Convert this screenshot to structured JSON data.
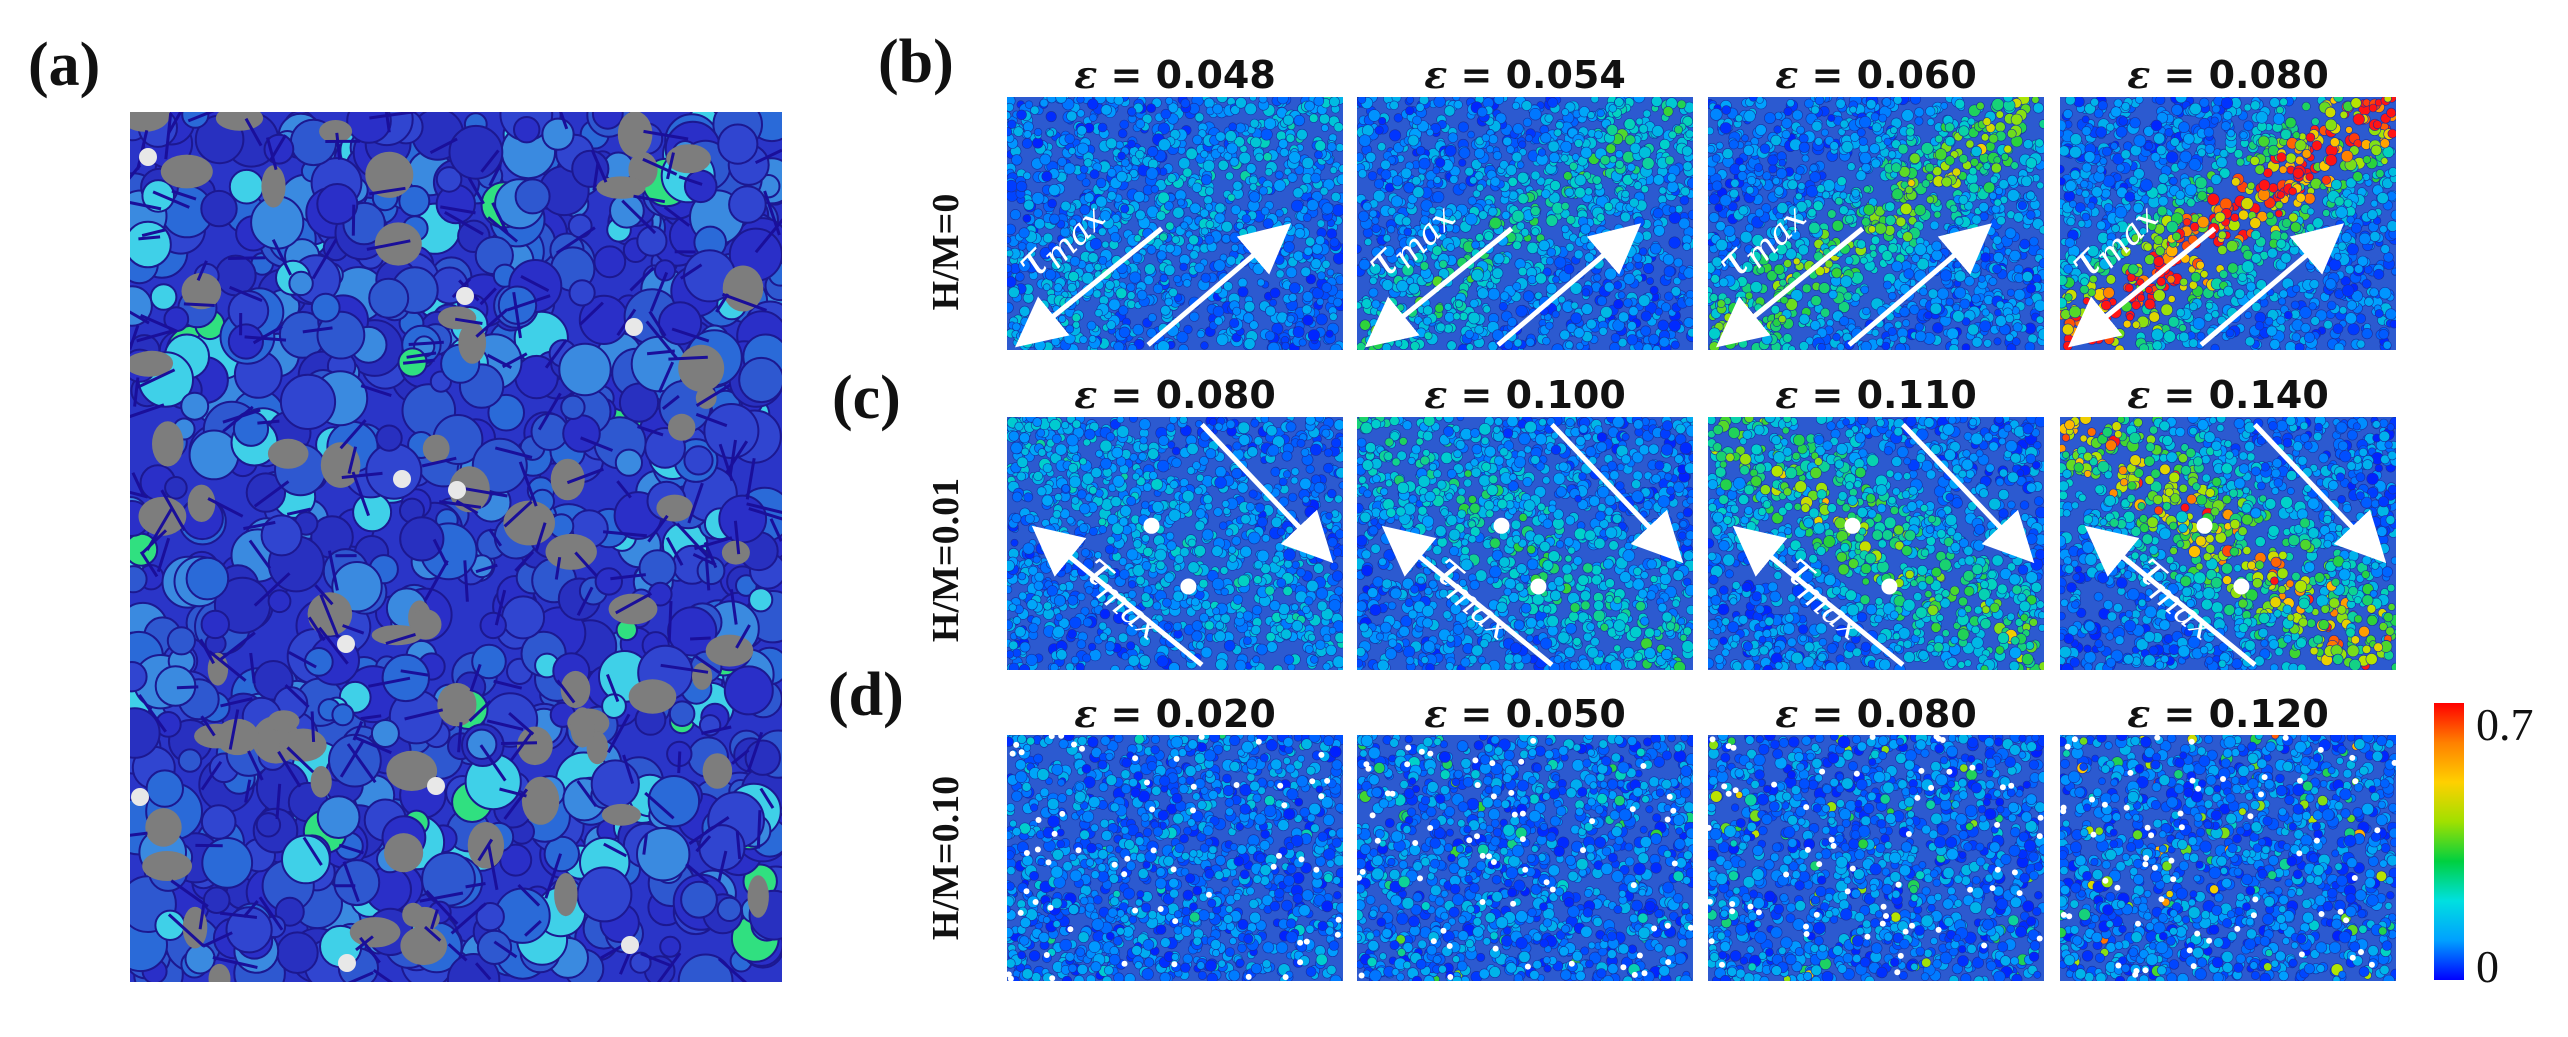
{
  "figure": {
    "panel_labels": {
      "a": "(a)",
      "b": "(b)",
      "c": "(c)",
      "d": "(d)"
    },
    "rows": [
      {
        "id": "b",
        "row_label": "H/M=0",
        "strains": [
          "0.048",
          "0.054",
          "0.060",
          "0.080"
        ],
        "intensity": [
          0.15,
          0.3,
          0.5,
          1.0
        ],
        "arrow_direction": "lower-left to upper-right",
        "has_tau_label": true
      },
      {
        "id": "c",
        "row_label": "H/M=0.01",
        "strains": [
          "0.080",
          "0.100",
          "0.110",
          "0.140"
        ],
        "intensity": [
          0.2,
          0.35,
          0.6,
          0.85
        ],
        "arrow_direction": "upper-left to lower-right",
        "has_tau_label": true,
        "has_hydrogen_dots": true
      },
      {
        "id": "d",
        "row_label": "H/M=0.10",
        "strains": [
          "0.020",
          "0.050",
          "0.080",
          "0.120"
        ],
        "intensity": [
          0.15,
          0.25,
          0.35,
          0.45
        ],
        "arrow_direction": "none",
        "has_tau_label": false,
        "has_hydrogen_dots": true
      }
    ],
    "epsilon_symbol": "ε",
    "equals": " = ",
    "tau_label": "τ",
    "tau_subscript": "max",
    "colorbar": {
      "max_label": "0.7",
      "min_label": "0",
      "colors": [
        "#0000ff",
        "#00a0ff",
        "#00e0e0",
        "#00d040",
        "#a0e000",
        "#ffd000",
        "#ff8000",
        "#ff0000"
      ]
    },
    "colors": {
      "background_blue": "#2e63c8",
      "dark_blue": "#1a1aa0",
      "network_dark": "#2a1ab0",
      "grain_gray": "#7d7d7d",
      "cyan": "#3fd0e8",
      "green": "#30d040",
      "red": "#e82020",
      "white": "#ffffff"
    }
  }
}
